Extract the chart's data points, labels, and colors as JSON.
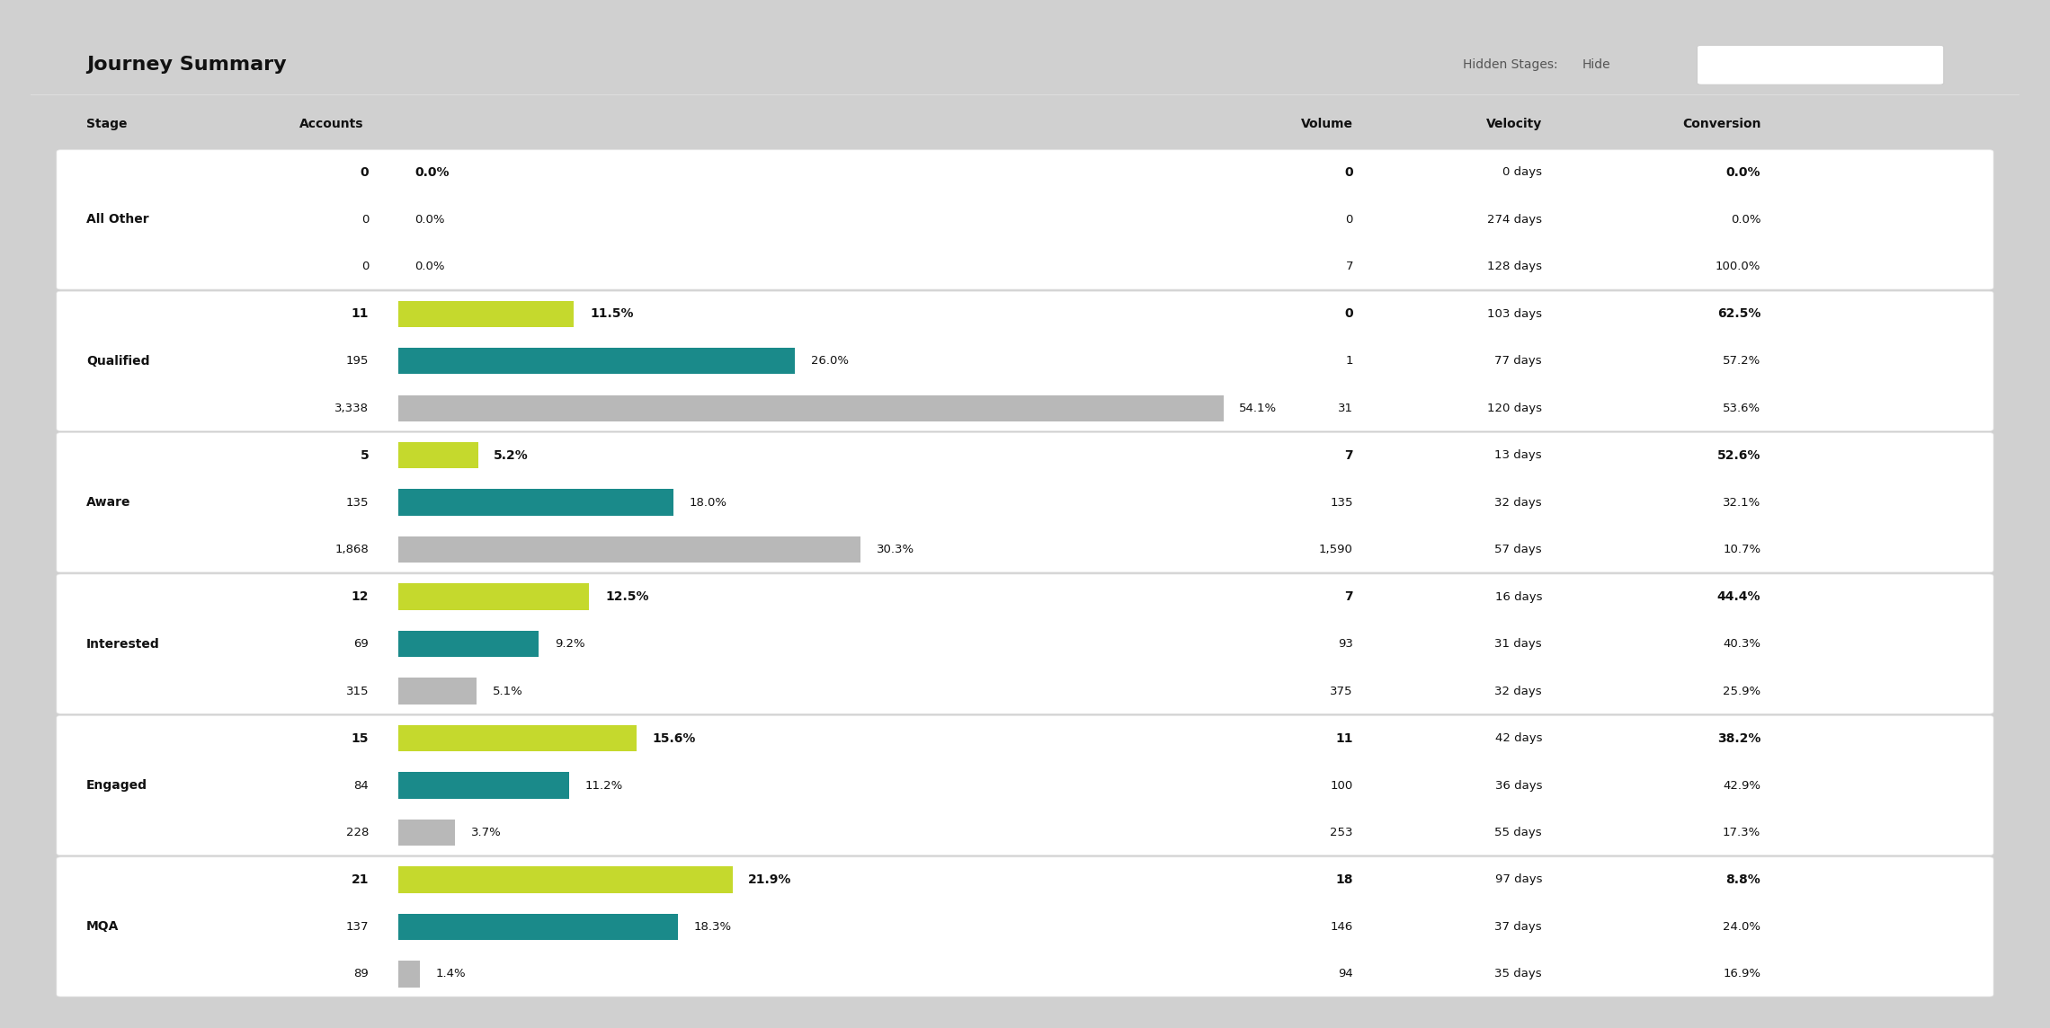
{
  "title": "Journey Summary",
  "hidden_stages_label": "Hidden Stages:",
  "hidden_stages_value": "Hide",
  "bg_color": "#ffffff",
  "outer_bg": "#e8e8e8",
  "card_bg": "#ffffff",
  "header_line_color": "#cccccc",
  "section_line_color": "#e0e0e0",
  "col_headers": [
    "Stage",
    "Accounts",
    "",
    "Volume",
    "Velocity",
    "Conversion"
  ],
  "bar_color_lime": "#c5d92d",
  "bar_color_teal": "#1a8a8a",
  "bar_color_gray": "#b8b8b8",
  "sections": [
    {
      "name": "All Other",
      "rows": [
        {
          "accounts": "0",
          "pct": "0.0%",
          "bar_val": 0.0,
          "bar_color": "lime",
          "volume": "0",
          "velocity": "0 days",
          "conversion": "0.0%"
        },
        {
          "accounts": "0",
          "pct": "0.0%",
          "bar_val": 0.0,
          "bar_color": "teal",
          "volume": "0",
          "velocity": "274 days",
          "conversion": "0.0%"
        },
        {
          "accounts": "0",
          "pct": "0.0%",
          "bar_val": 0.0,
          "bar_color": "gray",
          "volume": "7",
          "velocity": "128 days",
          "conversion": "100.0%"
        }
      ]
    },
    {
      "name": "Qualified",
      "rows": [
        {
          "accounts": "11",
          "pct": "11.5%",
          "bar_val": 11.5,
          "bar_color": "lime",
          "volume": "0",
          "velocity": "103 days",
          "conversion": "62.5%"
        },
        {
          "accounts": "195",
          "pct": "26.0%",
          "bar_val": 26.0,
          "bar_color": "teal",
          "volume": "1",
          "velocity": "77 days",
          "conversion": "57.2%"
        },
        {
          "accounts": "3,338",
          "pct": "54.1%",
          "bar_val": 54.1,
          "bar_color": "gray",
          "volume": "31",
          "velocity": "120 days",
          "conversion": "53.6%"
        }
      ]
    },
    {
      "name": "Aware",
      "rows": [
        {
          "accounts": "5",
          "pct": "5.2%",
          "bar_val": 5.2,
          "bar_color": "lime",
          "volume": "7",
          "velocity": "13 days",
          "conversion": "52.6%"
        },
        {
          "accounts": "135",
          "pct": "18.0%",
          "bar_val": 18.0,
          "bar_color": "teal",
          "volume": "135",
          "velocity": "32 days",
          "conversion": "32.1%"
        },
        {
          "accounts": "1,868",
          "pct": "30.3%",
          "bar_val": 30.3,
          "bar_color": "gray",
          "volume": "1,590",
          "velocity": "57 days",
          "conversion": "10.7%"
        }
      ]
    },
    {
      "name": "Interested",
      "rows": [
        {
          "accounts": "12",
          "pct": "12.5%",
          "bar_val": 12.5,
          "bar_color": "lime",
          "volume": "7",
          "velocity": "16 days",
          "conversion": "44.4%"
        },
        {
          "accounts": "69",
          "pct": "9.2%",
          "bar_val": 9.2,
          "bar_color": "teal",
          "volume": "93",
          "velocity": "31 days",
          "conversion": "40.3%"
        },
        {
          "accounts": "315",
          "pct": "5.1%",
          "bar_val": 5.1,
          "bar_color": "gray",
          "volume": "375",
          "velocity": "32 days",
          "conversion": "25.9%"
        }
      ]
    },
    {
      "name": "Engaged",
      "rows": [
        {
          "accounts": "15",
          "pct": "15.6%",
          "bar_val": 15.6,
          "bar_color": "lime",
          "volume": "11",
          "velocity": "42 days",
          "conversion": "38.2%"
        },
        {
          "accounts": "84",
          "pct": "11.2%",
          "bar_val": 11.2,
          "bar_color": "teal",
          "volume": "100",
          "velocity": "36 days",
          "conversion": "42.9%"
        },
        {
          "accounts": "228",
          "pct": "3.7%",
          "bar_val": 3.7,
          "bar_color": "gray",
          "volume": "253",
          "velocity": "55 days",
          "conversion": "17.3%"
        }
      ]
    },
    {
      "name": "MQA",
      "rows": [
        {
          "accounts": "21",
          "pct": "21.9%",
          "bar_val": 21.9,
          "bar_color": "lime",
          "volume": "18",
          "velocity": "97 days",
          "conversion": "8.8%"
        },
        {
          "accounts": "137",
          "pct": "18.3%",
          "bar_val": 18.3,
          "bar_color": "teal",
          "volume": "146",
          "velocity": "37 days",
          "conversion": "24.0%"
        },
        {
          "accounts": "89",
          "pct": "1.4%",
          "bar_val": 1.4,
          "bar_color": "gray",
          "volume": "94",
          "velocity": "35 days",
          "conversion": "16.9%"
        }
      ]
    }
  ]
}
